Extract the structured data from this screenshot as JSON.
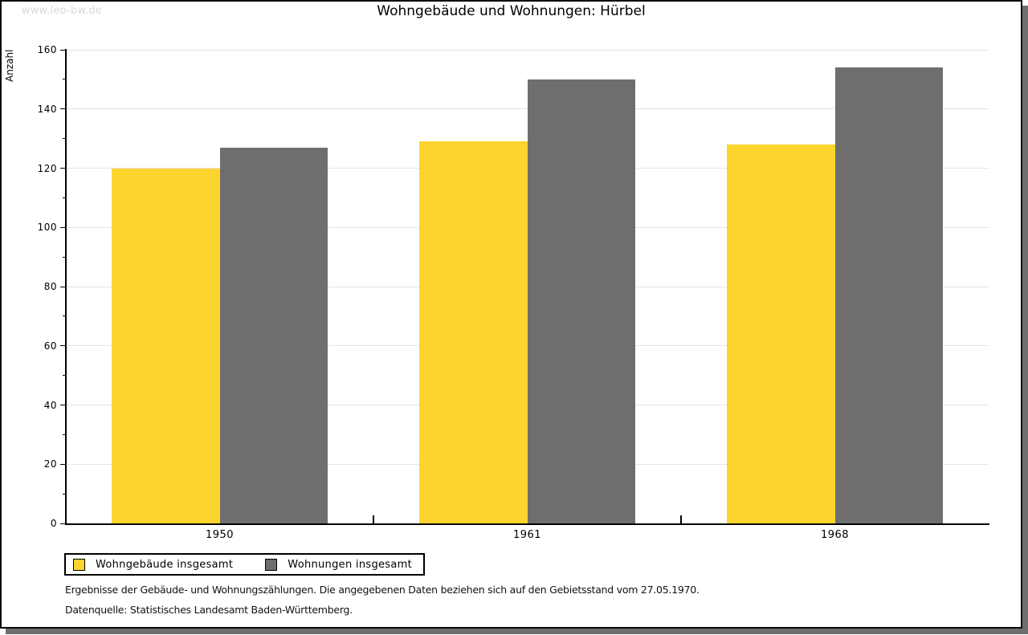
{
  "watermark": "www.leo-bw.de",
  "chart_data": {
    "type": "bar",
    "title": "Wohngebäude und Wohnungen: Hürbel",
    "ylabel": "Anzahl",
    "xlabel": "",
    "categories": [
      "1950",
      "1961",
      "1968"
    ],
    "series": [
      {
        "name": "Wohngebäude insgesamt",
        "color": "#FCD42D",
        "values": [
          120,
          129,
          128
        ]
      },
      {
        "name": "Wohnungen insgesamt",
        "color": "#6E6E6E",
        "values": [
          127,
          150,
          154
        ]
      }
    ],
    "ylim": [
      0,
      160
    ],
    "ytick_step": 20,
    "yminor_step": 10,
    "grid": "horizontal-major",
    "gridline_color": "#e4e4e4",
    "legend_position": "bottom-left"
  },
  "footer": {
    "line1": "Ergebnisse der Gebäude- und Wohnungszählungen. Die angegebenen Daten beziehen sich auf den Gebietsstand vom 27.05.1970.",
    "line2": "Datenquelle: Statistisches Landesamt Baden-Württemberg."
  }
}
